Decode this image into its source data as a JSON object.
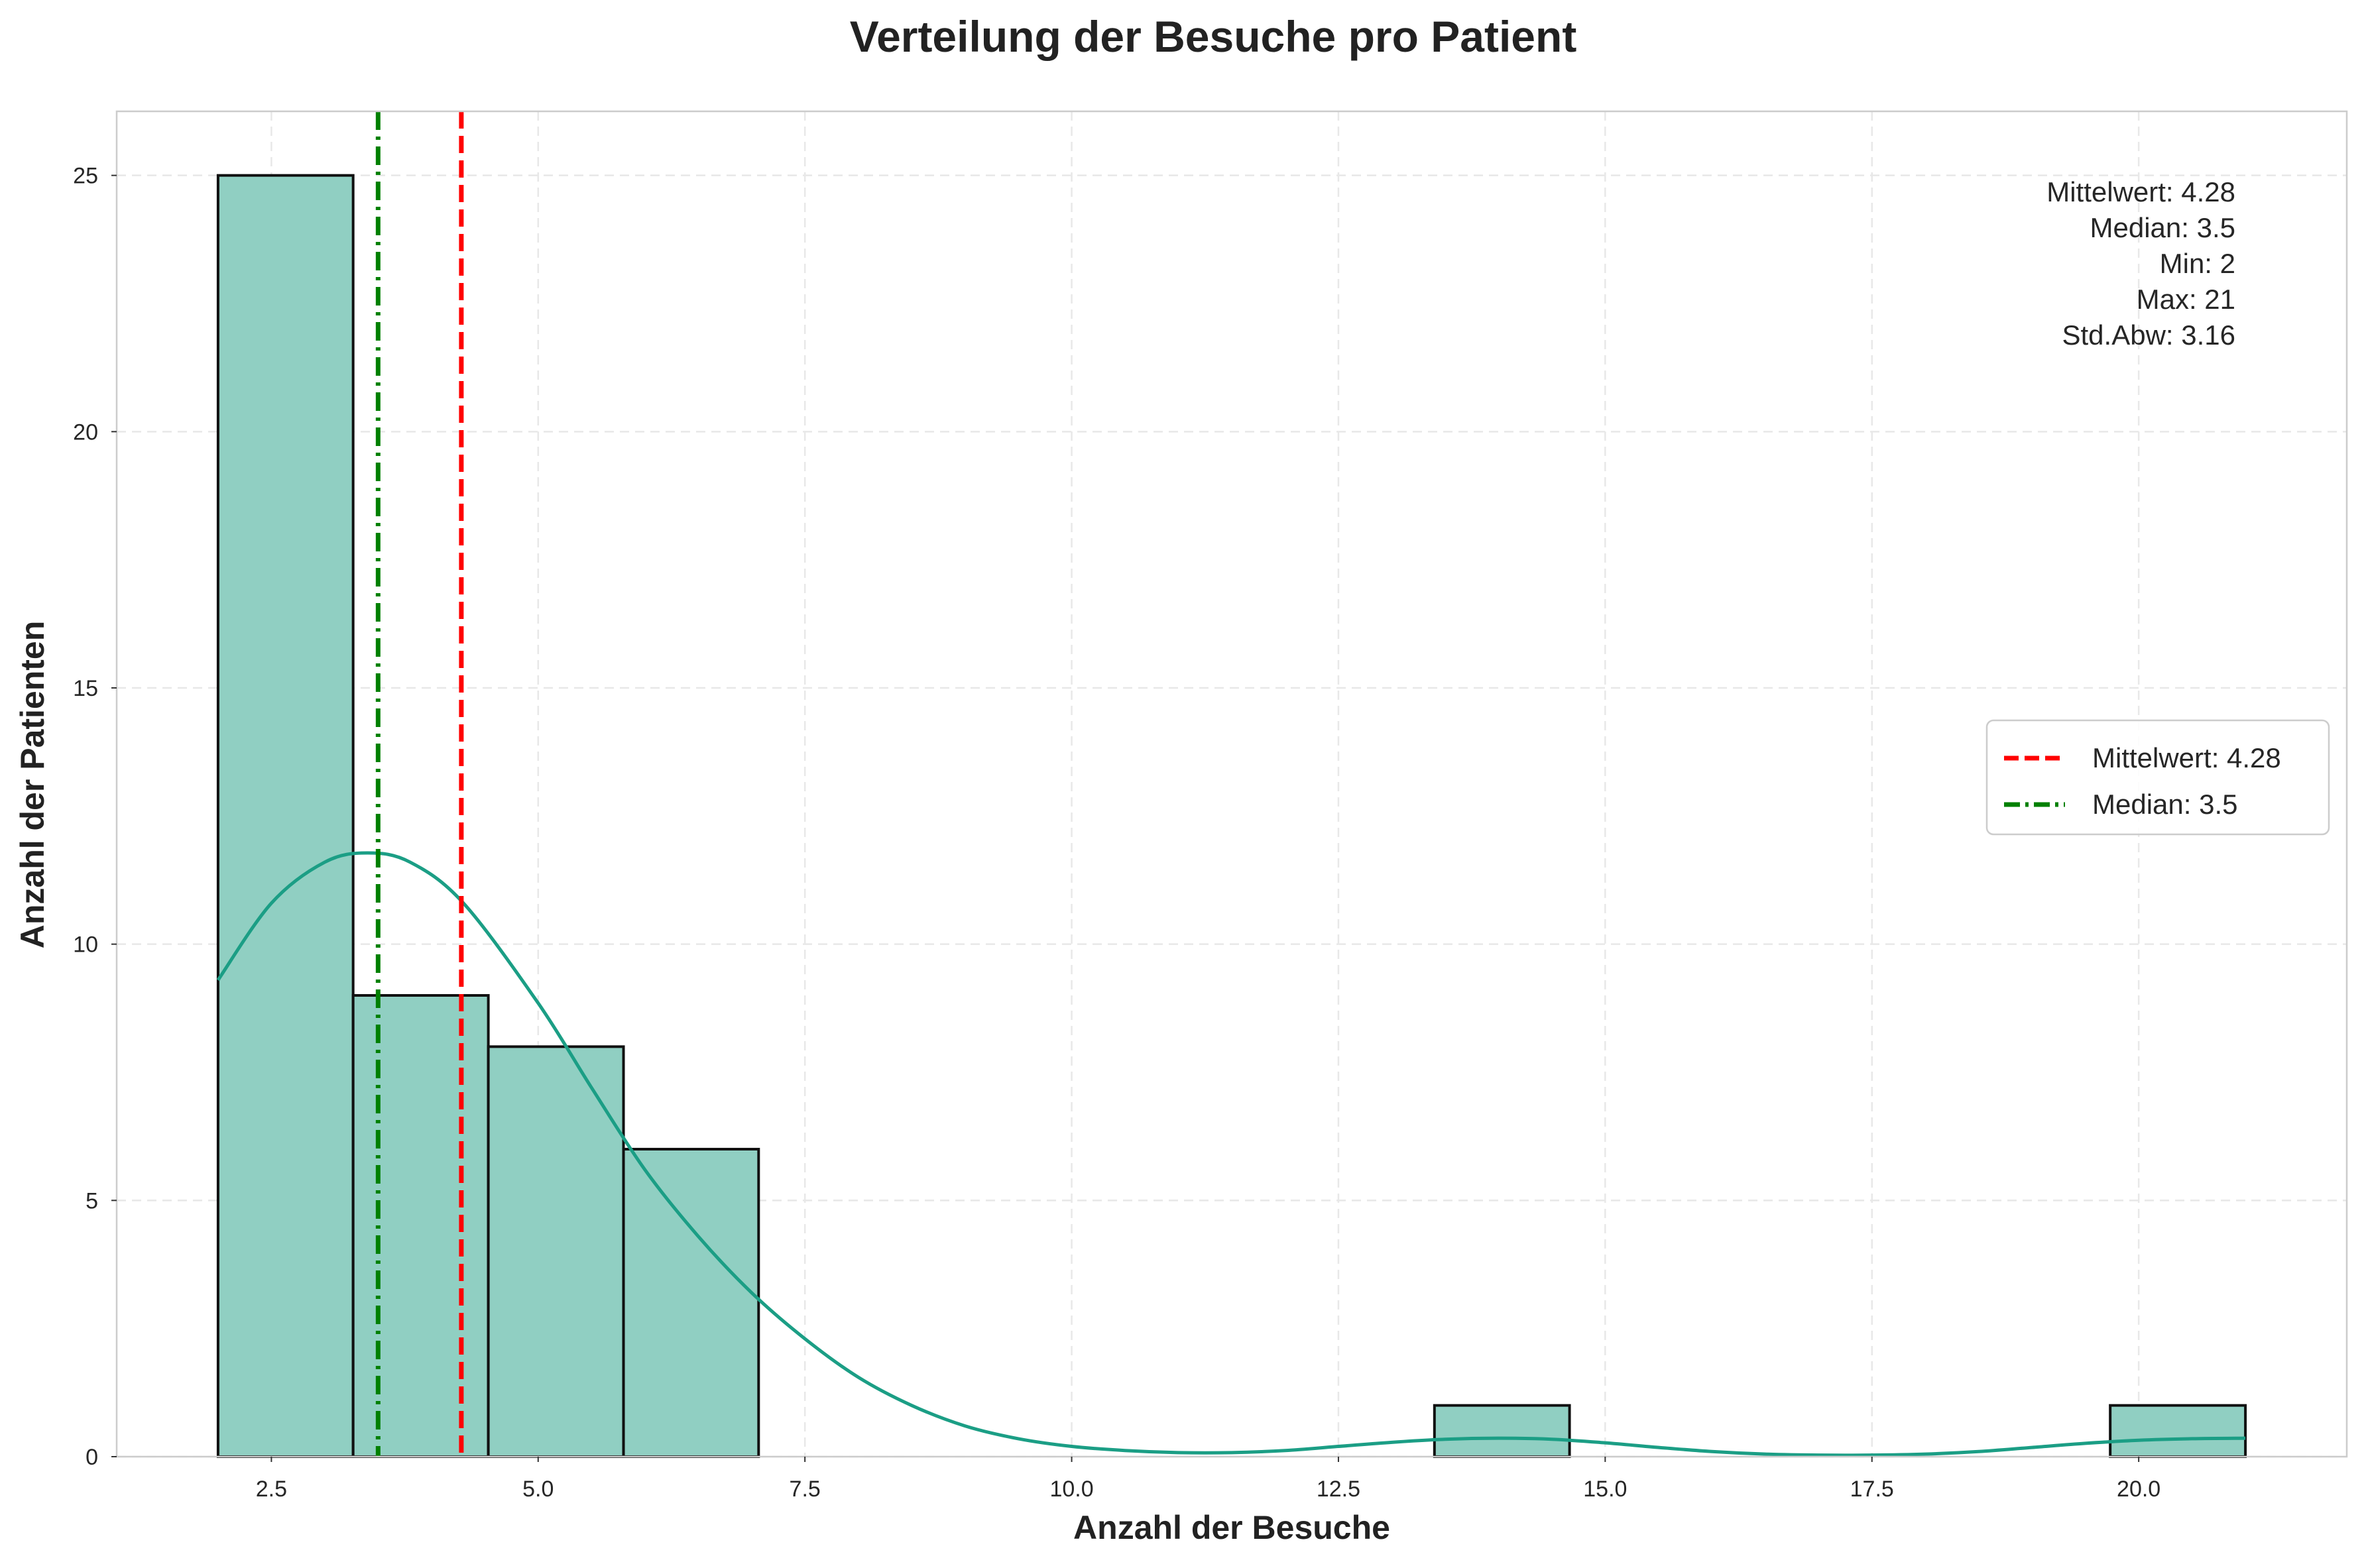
{
  "chart_data": {
    "type": "bar",
    "subtype": "histogram-with-kde",
    "title": "Verteilung der Besuche pro Patient",
    "xlabel": "Anzahl der Besuche",
    "ylabel": "Anzahl der Patienten",
    "xlim": [
      1.05,
      21.95
    ],
    "ylim": [
      0,
      26.25
    ],
    "xticks": [
      2.5,
      5.0,
      7.5,
      10.0,
      12.5,
      15.0,
      17.5,
      20.0
    ],
    "xtick_labels": [
      "2.5",
      "5.0",
      "7.5",
      "10.0",
      "12.5",
      "15.0",
      "17.5",
      "20.0"
    ],
    "yticks": [
      0,
      5,
      10,
      15,
      20,
      25
    ],
    "ytick_labels": [
      "0",
      "5",
      "10",
      "15",
      "20",
      "25"
    ],
    "grid": true,
    "bins": [
      {
        "start": 2.0,
        "end": 3.266,
        "count": 25
      },
      {
        "start": 3.266,
        "end": 4.533,
        "count": 9
      },
      {
        "start": 4.533,
        "end": 5.8,
        "count": 8
      },
      {
        "start": 5.8,
        "end": 7.066,
        "count": 6
      },
      {
        "start": 13.4,
        "end": 14.666,
        "count": 1
      },
      {
        "start": 19.733,
        "end": 21.0,
        "count": 1
      }
    ],
    "kde": {
      "x": [
        2.0,
        2.5,
        3.0,
        3.4,
        3.8,
        4.3,
        5.0,
        5.5,
        6.0,
        6.5,
        7.0,
        7.5,
        8.0,
        8.5,
        9.0,
        9.5,
        10.0,
        10.5,
        11.0,
        11.5,
        12.0,
        12.5,
        13.0,
        13.5,
        14.0,
        14.5,
        15.0,
        15.5,
        16.0,
        16.5,
        17.0,
        17.5,
        18.0,
        18.5,
        19.0,
        19.5,
        20.0,
        20.5,
        21.0
      ],
      "y": [
        9.3,
        10.8,
        11.6,
        11.78,
        11.6,
        10.8,
        8.85,
        7.2,
        5.6,
        4.3,
        3.2,
        2.3,
        1.55,
        1.0,
        0.6,
        0.35,
        0.2,
        0.12,
        0.08,
        0.08,
        0.12,
        0.2,
        0.28,
        0.34,
        0.36,
        0.34,
        0.27,
        0.18,
        0.1,
        0.05,
        0.03,
        0.03,
        0.05,
        0.1,
        0.18,
        0.26,
        0.32,
        0.35,
        0.36
      ]
    },
    "mean_line": {
      "x": 4.28,
      "label": "Mittelwert: 4.28",
      "color": "#ff0000",
      "style": "dashed"
    },
    "median_line": {
      "x": 3.5,
      "label": "Median: 3.5",
      "color": "#008000",
      "style": "dashdot"
    },
    "stats_box": [
      "Mittelwert: 4.28",
      "Median: 3.5",
      "Min: 2",
      "Max: 21",
      "Std.Abw: 3.16"
    ],
    "legend_position": "center-right",
    "colors": {
      "bar_fill": "#90cfc2",
      "bar_edge": "#111111",
      "kde": "#1b9e85",
      "grid": "#e8e8e8",
      "spine": "#cccccc"
    }
  }
}
